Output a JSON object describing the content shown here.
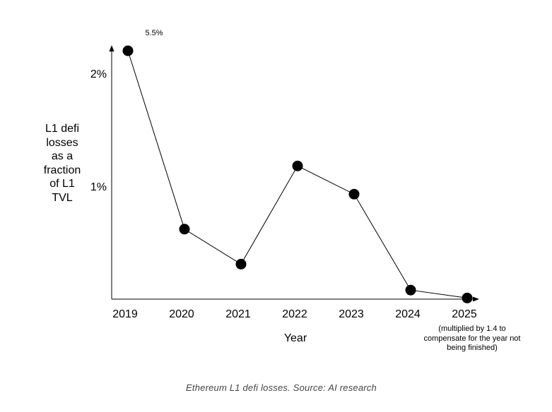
{
  "chart_data": {
    "type": "line",
    "x": [
      "2019",
      "2020",
      "2021",
      "2022",
      "2023",
      "2024",
      "2025"
    ],
    "series": [
      {
        "values": [
          2.2,
          0.62,
          0.31,
          1.18,
          0.93,
          0.08,
          0.01
        ]
      }
    ],
    "point_labels": [
      "5.5%",
      "",
      "",
      "",
      "",
      "",
      ""
    ],
    "yticks": [
      {
        "value": 1,
        "label": "1%"
      },
      {
        "value": 2,
        "label": "2%"
      }
    ],
    "ylim": [
      0,
      2.3
    ],
    "xlabel": "Year",
    "ylabel": "L1 defi\nlosses\nas a\nfraction\nof L1\nTVL",
    "footnote": "(multiplied by 1.4 to\ncompensate for the year not\nbeing finished)",
    "grid": false,
    "line_color": "#000000",
    "marker_color": "#000000"
  },
  "caption": "Ethereum L1 defi losses. Source: AI research"
}
